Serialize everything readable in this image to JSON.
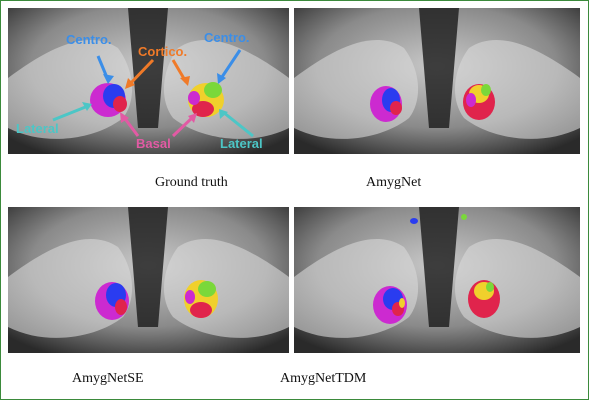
{
  "panels": [
    {
      "caption": "Ground truth"
    },
    {
      "caption": "AmygNet"
    },
    {
      "caption": "AmygNetSE"
    },
    {
      "caption": "AmygNetTDM"
    }
  ],
  "annotations": {
    "centro_left": "Centro.",
    "cortico": "Cortico.",
    "centro_right": "Centro.",
    "lateral_left": "Lateral",
    "basal": "Basal",
    "lateral_right": "Lateral"
  },
  "colors": {
    "frame": "#3b8a3b",
    "centro_label": "#3b8ee8",
    "cortico_label": "#f07a28",
    "lateral_label": "#4cc6c6",
    "basal_label": "#e25aa4",
    "seg_blue": "#2a3cf0",
    "seg_magenta": "#cc2ad0",
    "seg_red": "#e0244c",
    "seg_yellow": "#f0d02c",
    "seg_green": "#7ad83a"
  }
}
